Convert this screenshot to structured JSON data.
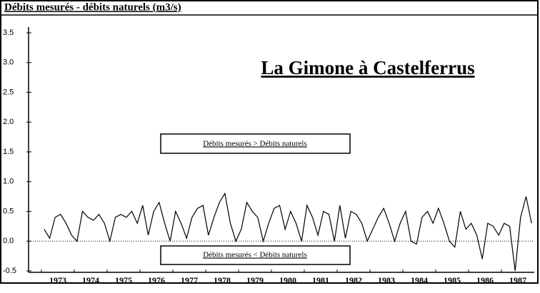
{
  "chart_data": {
    "type": "line",
    "title": "Débits mesurés - débits naturels (m3/s)",
    "annotations": [
      "La Gimone à Castelferrus",
      "Débits mesurés > Débits naturels",
      "Débits mesurés < Débits naturels"
    ],
    "categories": [
      null,
      null,
      null,
      "1973",
      null,
      null,
      null,
      null,
      null,
      "1974",
      null,
      null,
      null,
      null,
      null,
      "1975",
      null,
      null,
      null,
      null,
      null,
      "1976",
      null,
      null,
      null,
      null,
      null,
      "1977",
      null,
      null,
      null,
      null,
      null,
      "1978",
      null,
      null,
      null,
      null,
      null,
      "1979",
      null,
      null,
      null,
      null,
      null,
      "1980",
      null,
      null,
      null,
      null,
      null,
      "1981",
      null,
      null,
      null,
      null,
      null,
      "1982",
      null,
      null,
      null,
      null,
      null,
      "1983",
      null,
      null,
      null,
      null,
      null,
      "1984",
      null,
      null,
      null,
      null,
      null,
      "1985",
      null,
      null,
      null,
      null,
      null,
      "1986",
      null,
      null,
      null,
      null,
      null,
      "1987",
      null,
      null
    ],
    "values": [
      0.2,
      0.05,
      0.4,
      0.45,
      0.3,
      0.1,
      0.0,
      0.5,
      0.4,
      0.35,
      0.45,
      0.3,
      0.0,
      0.4,
      0.45,
      0.4,
      0.5,
      0.3,
      0.6,
      0.1,
      0.5,
      0.65,
      0.3,
      0.0,
      0.5,
      0.3,
      0.05,
      0.4,
      0.55,
      0.6,
      0.1,
      0.4,
      0.65,
      0.8,
      0.3,
      0.0,
      0.2,
      0.65,
      0.5,
      0.4,
      0.0,
      0.3,
      0.55,
      0.6,
      0.2,
      0.5,
      0.3,
      0.0,
      0.6,
      0.4,
      0.1,
      0.5,
      0.45,
      0.0,
      0.6,
      0.05,
      0.5,
      0.45,
      0.3,
      0.0,
      0.2,
      0.4,
      0.55,
      0.3,
      0.0,
      0.3,
      0.5,
      0.0,
      -0.05,
      0.4,
      0.5,
      0.3,
      0.55,
      0.3,
      0.0,
      -0.1,
      0.5,
      0.2,
      0.3,
      0.1,
      -0.3,
      0.3,
      0.25,
      0.1,
      0.3,
      0.25,
      -0.5,
      0.4,
      0.75,
      0.3
    ],
    "color": "#000000",
    "ylim": [
      -0.5,
      3.5
    ],
    "yticks": [
      {
        "value": -0.5,
        "label": "-0.5"
      },
      {
        "value": 0,
        "label": "0.0"
      },
      {
        "value": 0.5,
        "label": "0.5"
      },
      {
        "value": 1,
        "label": "1.0"
      },
      {
        "value": 1.5,
        "label": "1.5"
      },
      {
        "value": 2,
        "label": "2.0"
      },
      {
        "value": 2.5,
        "label": "2.5"
      },
      {
        "value": 3,
        "label": "3.0"
      },
      {
        "value": 3.5,
        "label": "3.5"
      }
    ],
    "zero_line": true
  }
}
